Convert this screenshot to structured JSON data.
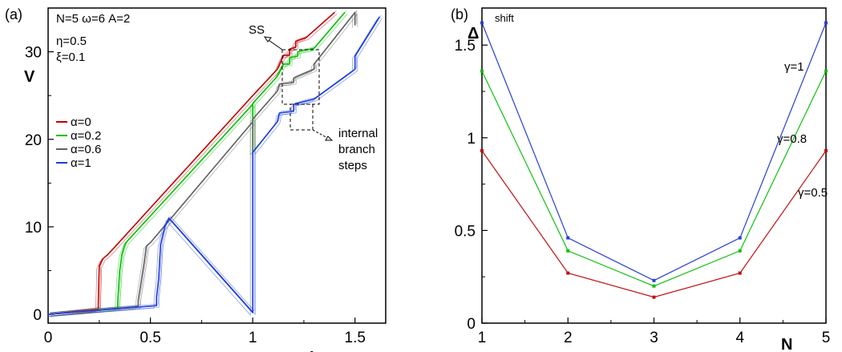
{
  "chart_data": [
    {
      "type": "line",
      "panel_label": "(a)",
      "xlabel": "I",
      "ylabel": "V",
      "xlim": [
        0,
        1.65
      ],
      "ylim": [
        -1,
        35
      ],
      "xticks": [
        "0",
        "0.5",
        "1",
        "1.5"
      ],
      "yticks": [
        "0",
        "10",
        "20",
        "30"
      ],
      "params": [
        "N=5 ω=6 A=2",
        "η=0.5",
        "ξ=0.1"
      ],
      "legend_position": "left-middle",
      "annotations": {
        "ss_label": "SS",
        "branch_label": [
          "internal",
          "branch",
          "steps"
        ]
      },
      "series": [
        {
          "name": "α=0",
          "color": "#c00000",
          "points": [
            [
              0,
              0
            ],
            [
              0.245,
              0.6
            ],
            [
              0.245,
              1.2
            ],
            [
              0.25,
              5.5
            ],
            [
              0.265,
              6.3
            ],
            [
              0.29,
              6.8
            ],
            [
              0.33,
              7.8
            ],
            [
              1.0,
              25.0
            ],
            [
              1.12,
              28.0
            ],
            [
              1.15,
              29.6
            ],
            [
              1.18,
              29.6
            ],
            [
              1.18,
              30.3
            ],
            [
              1.21,
              30.5
            ],
            [
              1.21,
              31.2
            ],
            [
              1.26,
              31.6
            ],
            [
              1.4,
              34.5
            ]
          ]
        },
        {
          "name": "α=0.2",
          "color": "#00c000",
          "points": [
            [
              0,
              0
            ],
            [
              0.34,
              0.7
            ],
            [
              0.34,
              1.5
            ],
            [
              0.35,
              5.0
            ],
            [
              0.36,
              6.8
            ],
            [
              0.37,
              7.6
            ],
            [
              0.38,
              8.2
            ],
            [
              1.0,
              24.0
            ],
            [
              1.0,
              18.5
            ],
            [
              1.0,
              24.1
            ],
            [
              1.12,
              27.2
            ],
            [
              1.15,
              28.6
            ],
            [
              1.18,
              28.6
            ],
            [
              1.18,
              29.3
            ],
            [
              1.22,
              29.5
            ],
            [
              1.22,
              30.0
            ],
            [
              1.3,
              30.4
            ],
            [
              1.45,
              34.5
            ]
          ]
        },
        {
          "name": "α=0.6",
          "color": "#606060",
          "points": [
            [
              0,
              0
            ],
            [
              0.44,
              0.9
            ],
            [
              0.44,
              1.6
            ],
            [
              0.45,
              3.0
            ],
            [
              0.47,
              6.0
            ],
            [
              0.48,
              7.8
            ],
            [
              0.5,
              8.2
            ],
            [
              1.0,
              22.0
            ],
            [
              1.0,
              18.5
            ],
            [
              1.0,
              22.3
            ],
            [
              1.12,
              25.5
            ],
            [
              1.13,
              26.3
            ],
            [
              1.2,
              26.5
            ],
            [
              1.2,
              27.0
            ],
            [
              1.3,
              28.0
            ],
            [
              1.3,
              28.6
            ],
            [
              1.5,
              34.5
            ],
            [
              1.5,
              33.0
            ]
          ]
        },
        {
          "name": "α=1",
          "color": "#1a3ce0",
          "points": [
            [
              0,
              0
            ],
            [
              0.53,
              1.0
            ],
            [
              0.53,
              2.0
            ],
            [
              0.54,
              4.0
            ],
            [
              0.55,
              8.0
            ],
            [
              0.57,
              10.0
            ],
            [
              0.59,
              11.0
            ],
            [
              1.0,
              0.2
            ],
            [
              1.0,
              18.5
            ],
            [
              1.12,
              22.0
            ],
            [
              1.13,
              23.0
            ],
            [
              1.2,
              23.2
            ],
            [
              1.2,
              24.0
            ],
            [
              1.3,
              24.6
            ],
            [
              1.5,
              28.0
            ],
            [
              1.5,
              29.5
            ],
            [
              1.62,
              34.0
            ]
          ]
        }
      ]
    },
    {
      "type": "line",
      "panel_label": "(b)",
      "title": "shift",
      "xlabel": "N",
      "ylabel": "Δ",
      "xlim": [
        1,
        5
      ],
      "ylim": [
        0,
        1.7
      ],
      "xticks": [
        "1",
        "2",
        "3",
        "4",
        "5"
      ],
      "yticks": [
        "0",
        "0.5",
        "1",
        "1.5"
      ],
      "x": [
        1,
        2,
        3,
        4,
        5
      ],
      "series": [
        {
          "name": "γ=1",
          "color": "#2a3fd0",
          "values": [
            1.62,
            0.46,
            0.23,
            0.46,
            1.62
          ]
        },
        {
          "name": "γ=0.8",
          "color": "#10c010",
          "values": [
            1.36,
            0.39,
            0.2,
            0.39,
            1.36
          ]
        },
        {
          "name": "γ=0.5",
          "color": "#c01010",
          "values": [
            0.93,
            0.27,
            0.14,
            0.27,
            0.93
          ]
        }
      ]
    }
  ]
}
